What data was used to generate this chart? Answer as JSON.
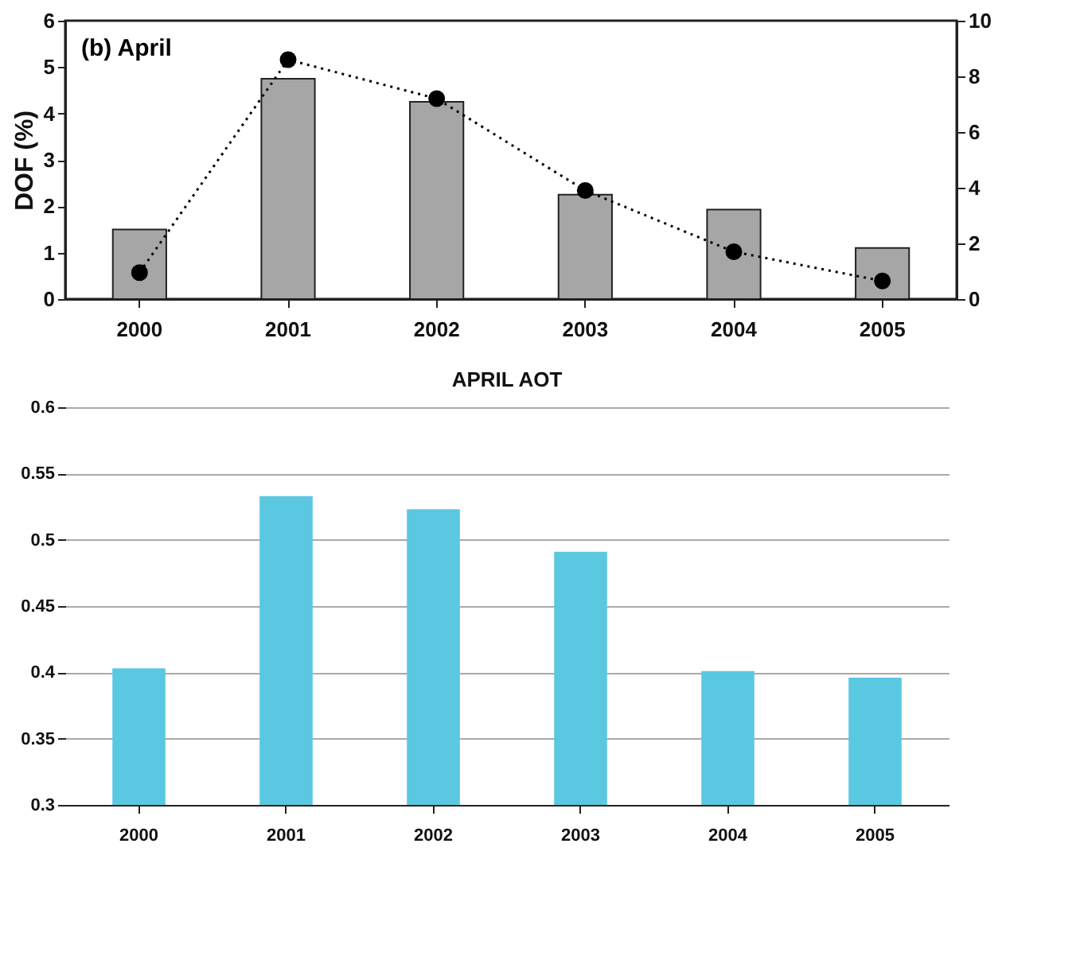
{
  "chart_data": [
    {
      "type": "bar",
      "categories": [
        "2000",
        "2001",
        "2002",
        "2003",
        "2004",
        "2005"
      ],
      "ylabel": "DOF (%)",
      "annotations": [
        "(b) April"
      ],
      "ylim": [
        0,
        6
      ],
      "yticks": [
        0,
        1,
        2,
        3,
        4,
        5,
        6
      ],
      "y2lim": [
        0,
        10
      ],
      "y2ticks": [
        0,
        2,
        4,
        6,
        8,
        10
      ],
      "grid": false,
      "series": [
        {
          "color": "#a6a6a6",
          "values": [
            1.5,
            4.75,
            4.25,
            2.25,
            1.93,
            1.1
          ]
        },
        {
          "type": "line",
          "axis": "y2",
          "color": "#000000",
          "marker": "circle",
          "line_style": "dotted",
          "values": [
            0.95,
            8.6,
            7.2,
            3.9,
            1.7,
            0.65
          ]
        }
      ]
    },
    {
      "type": "bar",
      "title": "APRIL AOT",
      "categories": [
        "2000",
        "2001",
        "2002",
        "2003",
        "2004",
        "2005"
      ],
      "ylim": [
        0.3,
        0.6
      ],
      "yticks": [
        0.3,
        0.35,
        0.4,
        0.45,
        0.5,
        0.55,
        0.6
      ],
      "grid": "y",
      "series": [
        {
          "color": "#5bc8e2",
          "values": [
            0.403,
            0.533,
            0.523,
            0.491,
            0.401,
            0.396
          ]
        }
      ]
    }
  ]
}
